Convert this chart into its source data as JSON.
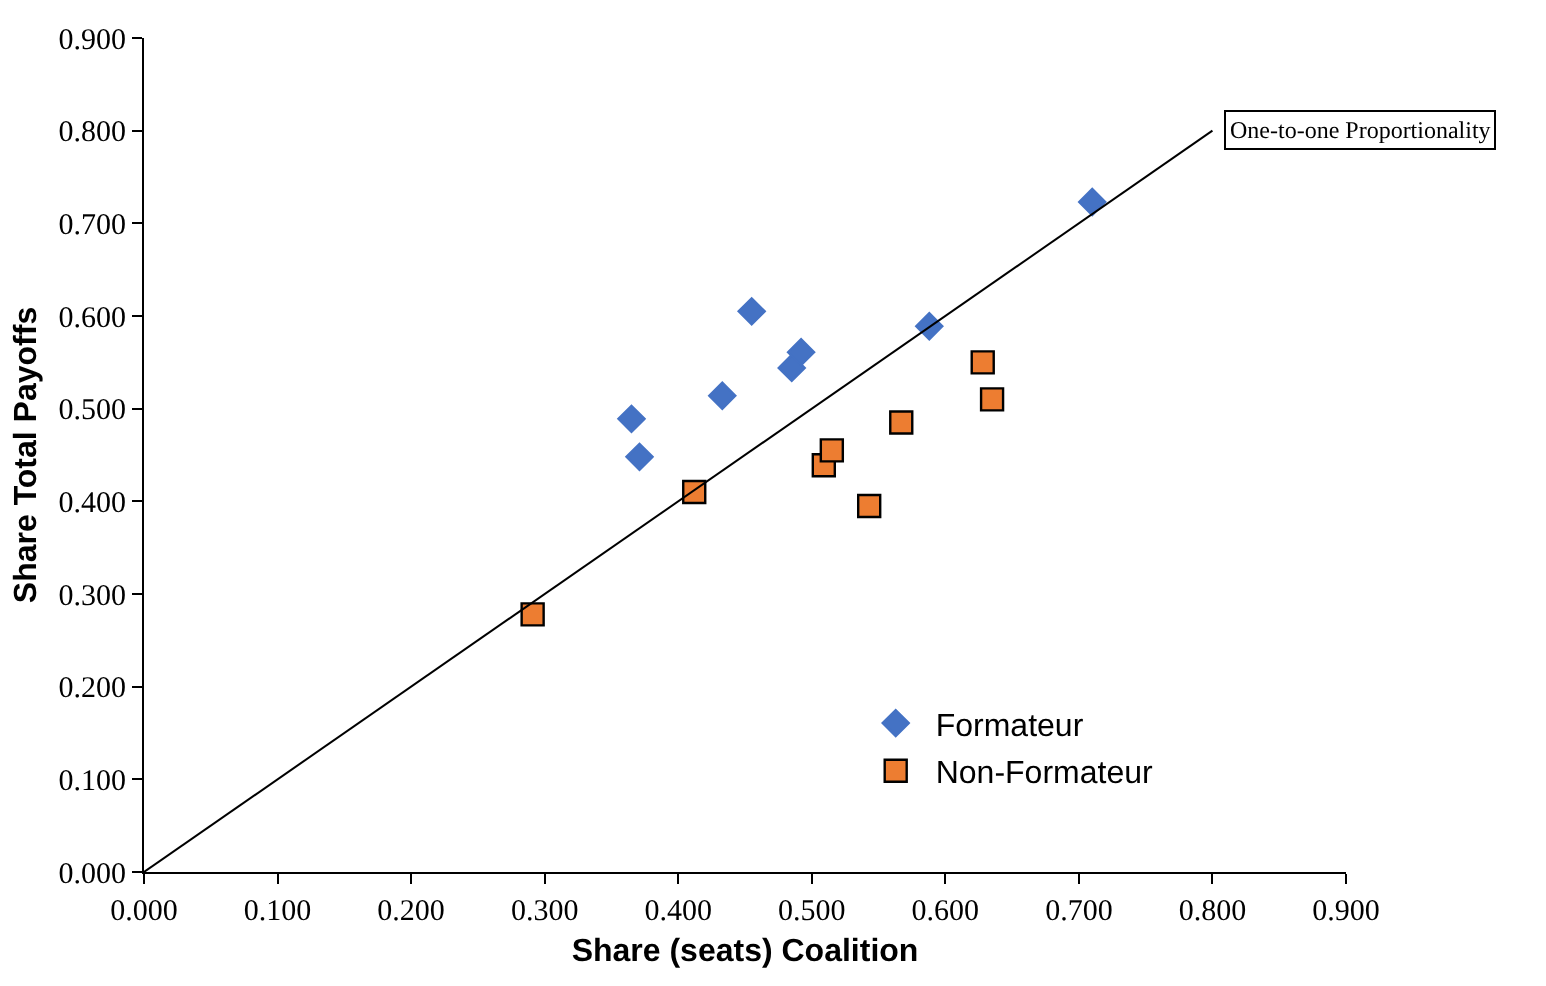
{
  "chart_data": {
    "type": "scatter",
    "xlabel": "Share (seats) Coalition",
    "ylabel": "Share Total Payoffs",
    "xlim": [
      0,
      0.9
    ],
    "ylim": [
      0,
      0.9
    ],
    "xticks": [
      {
        "value": 0,
        "label": "0.000"
      },
      {
        "value": 0.1,
        "label": "0.100"
      },
      {
        "value": 0.2,
        "label": "0.200"
      },
      {
        "value": 0.3,
        "label": "0.300"
      },
      {
        "value": 0.4,
        "label": "0.400"
      },
      {
        "value": 0.5,
        "label": "0.500"
      },
      {
        "value": 0.6,
        "label": "0.600"
      },
      {
        "value": 0.7,
        "label": "0.700"
      },
      {
        "value": 0.8,
        "label": "0.800"
      },
      {
        "value": 0.9,
        "label": "0.900"
      }
    ],
    "yticks": [
      {
        "value": 0,
        "label": "0.000"
      },
      {
        "value": 0.1,
        "label": "0.100"
      },
      {
        "value": 0.2,
        "label": "0.200"
      },
      {
        "value": 0.3,
        "label": "0.300"
      },
      {
        "value": 0.4,
        "label": "0.400"
      },
      {
        "value": 0.5,
        "label": "0.500"
      },
      {
        "value": 0.6,
        "label": "0.600"
      },
      {
        "value": 0.7,
        "label": "0.700"
      },
      {
        "value": 0.8,
        "label": "0.800"
      },
      {
        "value": 0.9,
        "label": "0.900"
      }
    ],
    "legend": "bottom right",
    "series": [
      {
        "name": "Formateur",
        "color": "#4472c4",
        "marker": "diamond",
        "x": [
          0.365,
          0.371,
          0.433,
          0.455,
          0.485,
          0.492,
          0.588,
          0.71
        ],
        "values": [
          0.489,
          0.448,
          0.514,
          0.605,
          0.544,
          0.561,
          0.589,
          0.723
        ]
      },
      {
        "name": "Non-Formateur",
        "color": "#ed7d31",
        "marker": "square",
        "x": [
          0.291,
          0.412,
          0.509,
          0.515,
          0.543,
          0.567,
          0.628,
          0.635
        ],
        "values": [
          0.278,
          0.41,
          0.439,
          0.455,
          0.395,
          0.485,
          0.55,
          0.51
        ]
      },
      {
        "type": "line",
        "color": "#000000",
        "marker": "none",
        "line_style": "solid",
        "x": [
          0,
          0.8
        ],
        "values": [
          0,
          0.8
        ]
      }
    ],
    "annotations": [
      {
        "text": "One-to-one Proportionality",
        "x": 0.8,
        "y": 0.8
      }
    ]
  }
}
